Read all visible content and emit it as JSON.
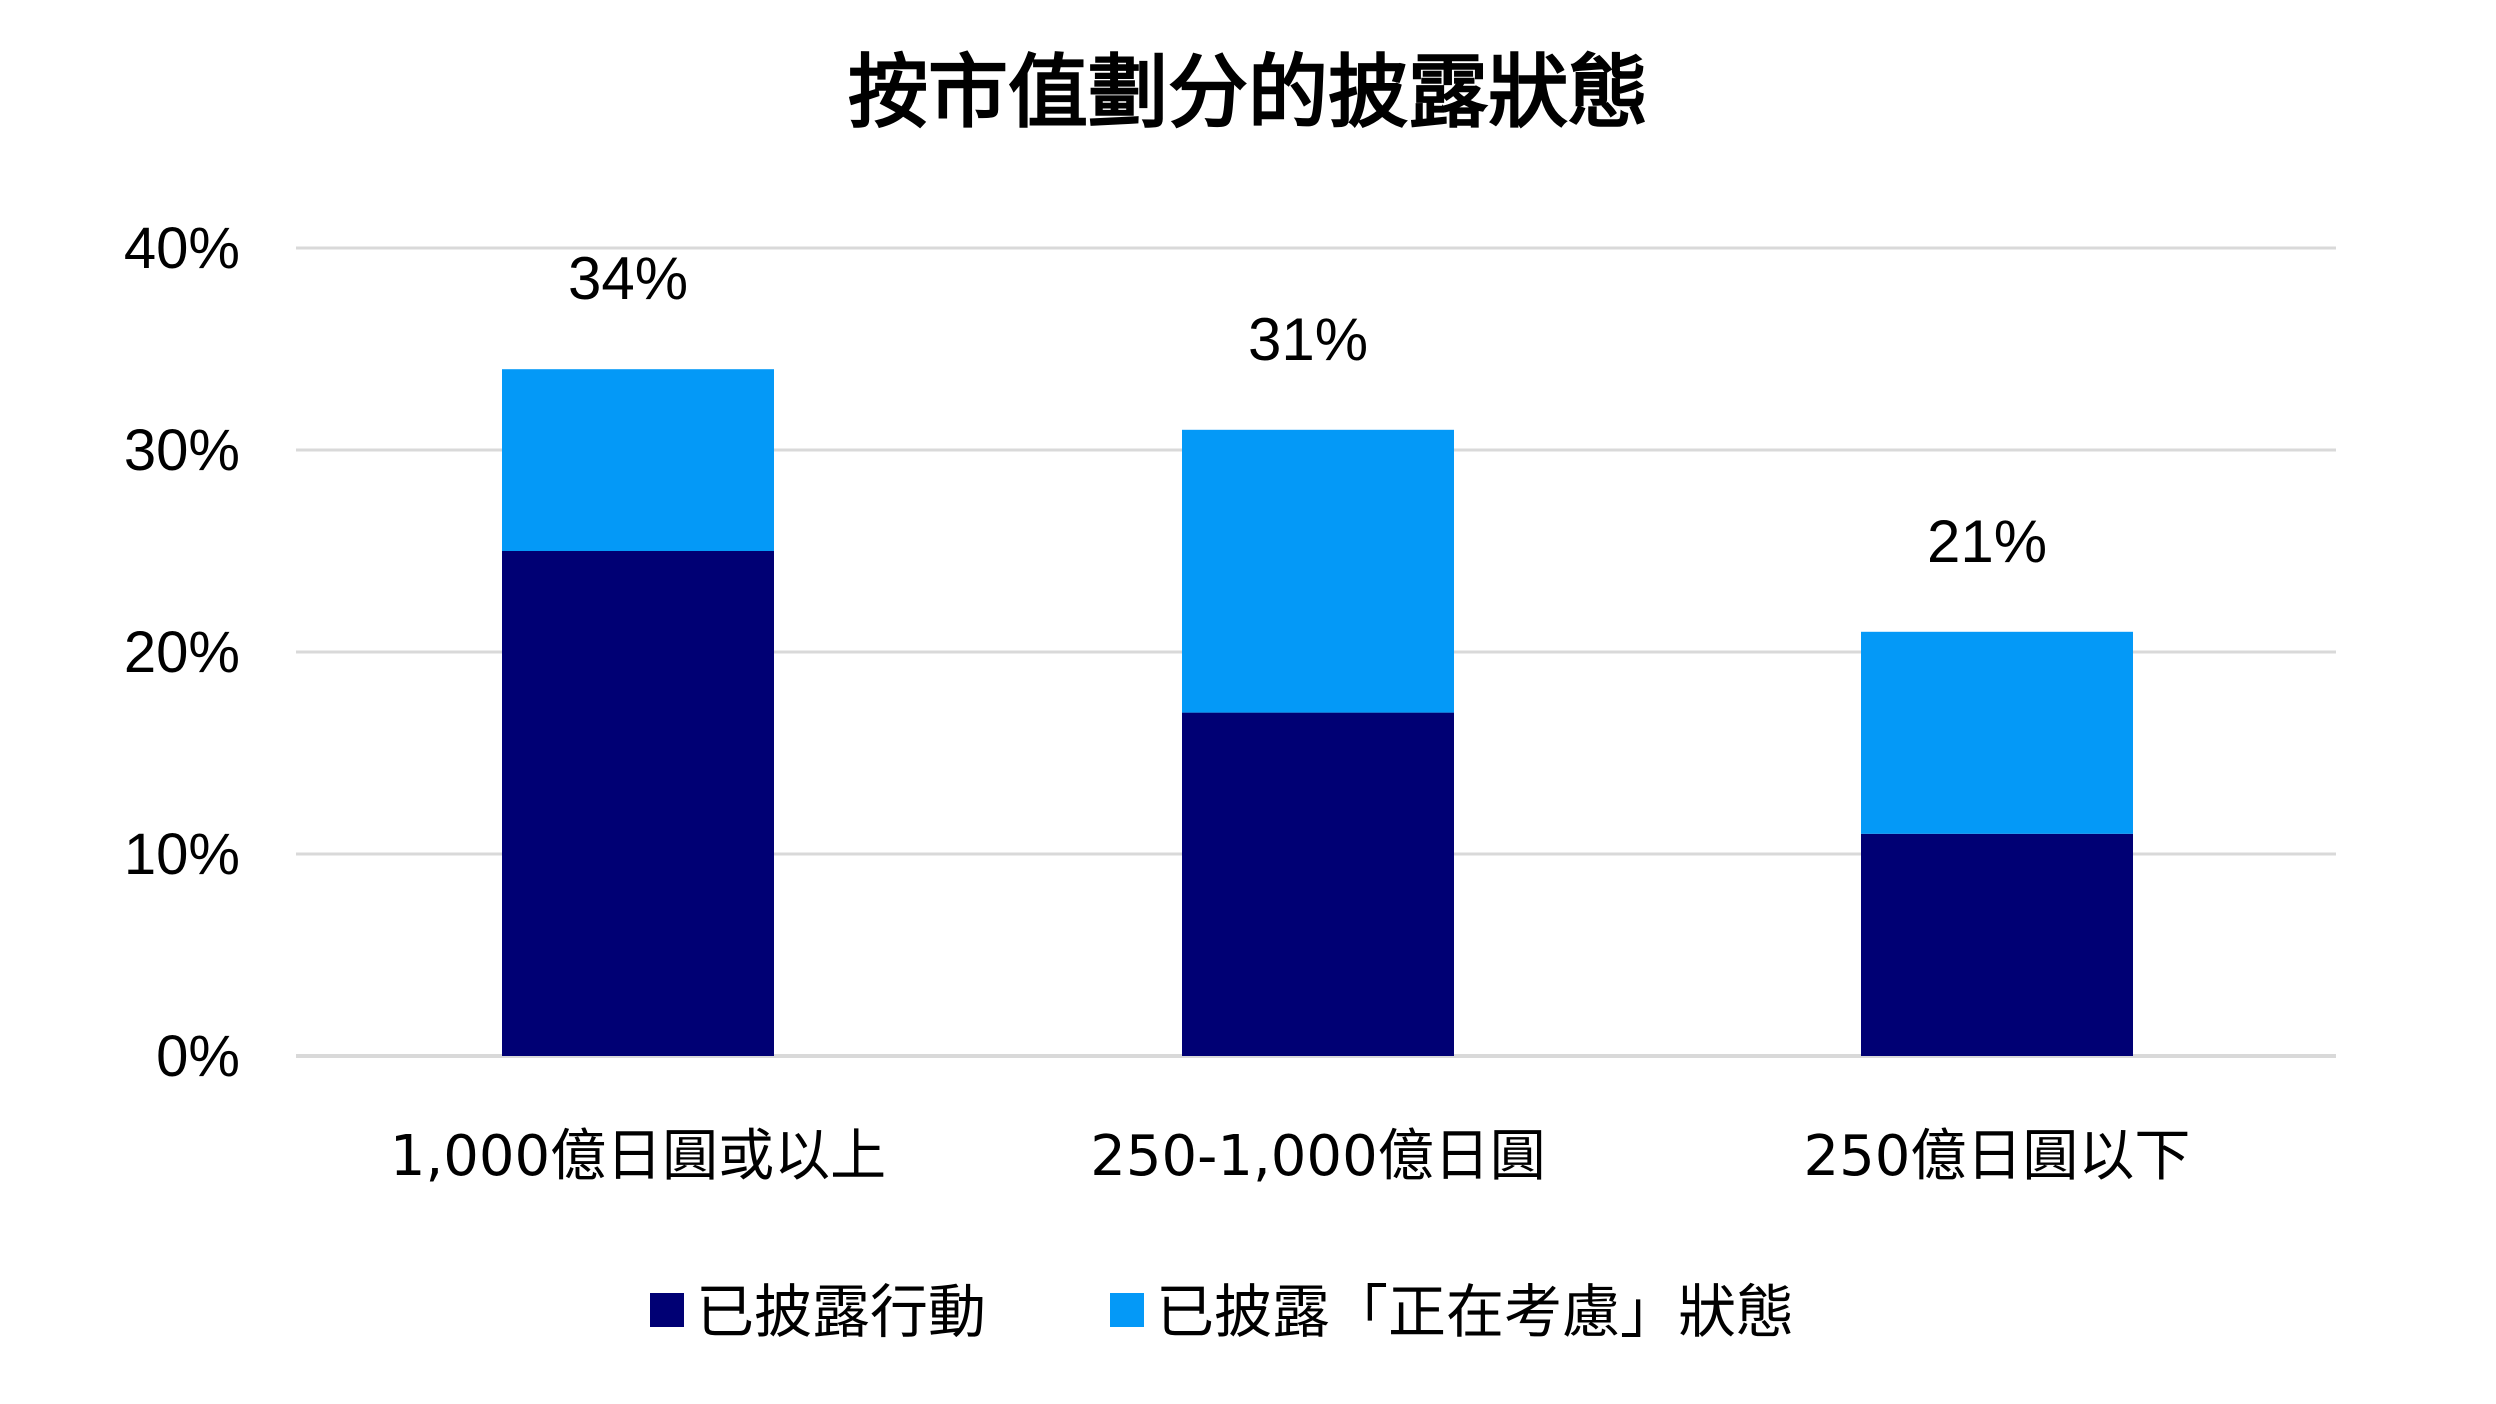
{
  "chart_data": {
    "type": "bar",
    "stacked": true,
    "title": "按市值劃分的披露狀態",
    "xlabel": "",
    "ylabel": "",
    "categories": [
      "1,000億日圓或以上",
      "250-1,000億日圓",
      "250億日圓以下"
    ],
    "series": [
      {
        "name": "已披露行動",
        "values": [
          25,
          17,
          11
        ],
        "color": "#000074"
      },
      {
        "name": "已披露「正在考慮」狀態",
        "values": [
          9,
          14,
          10
        ],
        "color": "#0499F7"
      }
    ],
    "totals": [
      34,
      31,
      21
    ],
    "total_labels": [
      "34%",
      "31%",
      "21%"
    ],
    "ylim": [
      0,
      40
    ],
    "yticks": [
      0,
      10,
      20,
      30,
      40
    ],
    "ytick_labels": [
      "0%",
      "10%",
      "20%",
      "30%",
      "40%"
    ],
    "grid": true,
    "legend_position": "bottom"
  }
}
